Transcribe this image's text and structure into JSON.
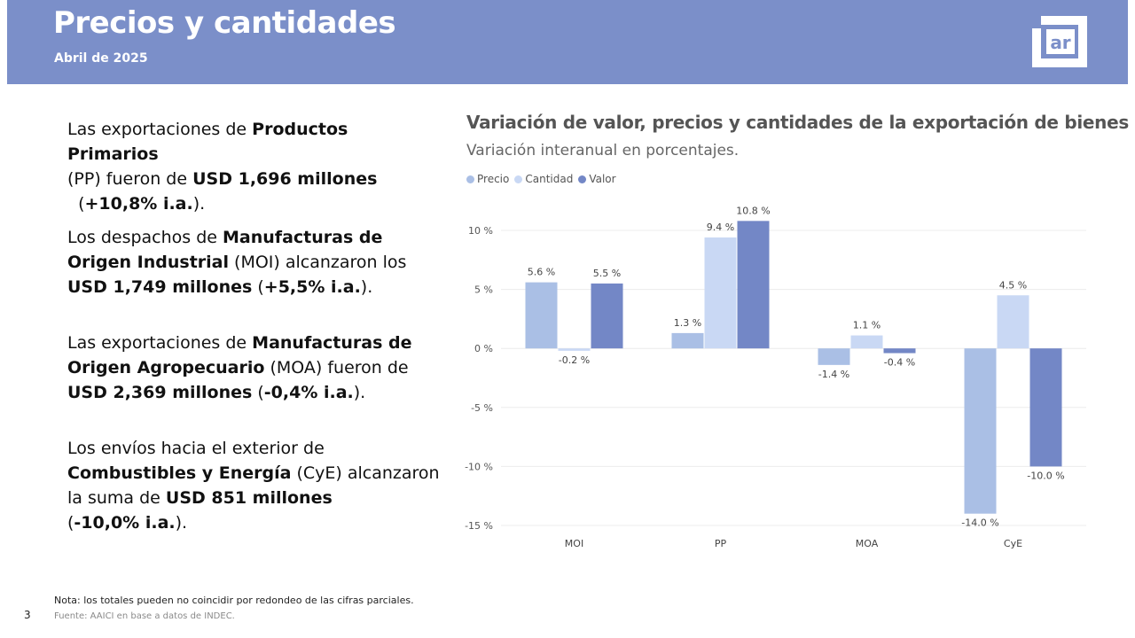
{
  "header": {
    "title": "Precios y cantidades",
    "subtitle": "Abril de 2025",
    "logo_text": "ar",
    "bg_color": "#7b8fc9"
  },
  "paragraphs": [
    [
      {
        "t": "Las exportaciones de ",
        "b": false
      },
      {
        "t": "Productos Primarios",
        "b": true
      },
      {
        "t": " (PP) fueron de ",
        "b": false
      },
      {
        "t": "USD 1,696 millones",
        "b": true
      },
      {
        "t": " (",
        "b": false
      },
      {
        "t": "+10,8% i.a.",
        "b": true
      },
      {
        "t": ").",
        "b": false
      }
    ],
    [
      {
        "t": "Los despachos de ",
        "b": false
      },
      {
        "t": "Manufacturas de Origen Industrial",
        "b": true
      },
      {
        "t": " (MOI) alcanzaron los ",
        "b": false
      },
      {
        "t": "USD 1,749 millones",
        "b": true
      },
      {
        "t": " (",
        "b": false
      },
      {
        "t": "+5,5% i.a.",
        "b": true
      },
      {
        "t": ").",
        "b": false
      }
    ],
    [
      {
        "t": "Las exportaciones de ",
        "b": false
      },
      {
        "t": "Manufacturas de Origen Agropecuario",
        "b": true
      },
      {
        "t": "  (MOA) fueron de ",
        "b": false
      },
      {
        "t": "USD 2,369 millones",
        "b": true
      },
      {
        "t": " (",
        "b": false
      },
      {
        "t": "-0,4% i.a.",
        "b": true
      },
      {
        "t": ").",
        "b": false
      }
    ],
    [
      {
        "t": "Los envíos hacia el exterior de ",
        "b": false
      },
      {
        "t": "Combustibles y Energía",
        "b": true
      },
      {
        "t": " (CyE) alcanzaron la suma de ",
        "b": false
      },
      {
        "t": "USD 851 millones",
        "b": true
      },
      {
        "t": " (",
        "b": false
      },
      {
        "t": "-10,0%  i.a.",
        "b": true
      },
      {
        "t": ").",
        "b": false
      }
    ]
  ],
  "footer": {
    "page_number": "3",
    "note": "Nota: los totales pueden no coincidir por redondeo de las cifras parciales.",
    "source": "Fuente: AAICI en base a datos de INDEC."
  },
  "chart_data": {
    "type": "bar",
    "title": "Variación de valor, precios y cantidades de la exportación de bienes",
    "subtitle": "Variación interanual en porcentajes.",
    "categories": [
      "MOI",
      "PP",
      "MOA",
      "CyE"
    ],
    "series": [
      {
        "name": "Precio",
        "color": "#aabfe5",
        "values": [
          5.6,
          1.3,
          -1.4,
          -14.0
        ],
        "labels": [
          "5.6 %",
          "1.3 %",
          "-1.4 %",
          "-14.0 %"
        ]
      },
      {
        "name": "Cantidad",
        "color": "#c9d8f4",
        "values": [
          -0.2,
          9.4,
          1.1,
          4.5
        ],
        "labels": [
          "-0.2 %",
          "9.4 %",
          "1.1 %",
          "4.5 %"
        ]
      },
      {
        "name": "Valor",
        "color": "#7387c6",
        "values": [
          5.5,
          10.8,
          -0.4,
          -10.0
        ],
        "labels": [
          "5.5 %",
          "10.8 %",
          "-0.4 %",
          "-10.0 %"
        ]
      }
    ],
    "yticks": [
      10,
      5,
      0,
      -5,
      -10,
      -15
    ],
    "ytick_labels": [
      "10 %",
      "5 %",
      "0 %",
      "-5 %",
      "-10 %",
      "-15 %"
    ],
    "ylim": [
      -15,
      10
    ],
    "grid": true,
    "legend_position": "top-left"
  }
}
